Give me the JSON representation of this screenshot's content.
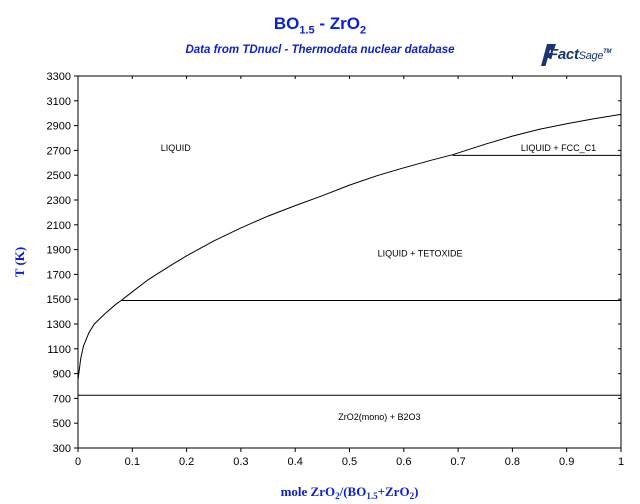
{
  "title": {
    "main": "BO",
    "sub": "1.5",
    "rest": " - ZrO",
    "sub2": "2"
  },
  "subtitle": "Data from TDnucl - Thermodata nuclear database",
  "logo": {
    "fact": "Fact",
    "sage": "Sage",
    "tm": "TM"
  },
  "chart_data": {
    "type": "line",
    "title": "BO1.5 - ZrO2",
    "xlabel": "mole ZrO2/(BO1.5+ZrO2)",
    "ylabel": "T (K)",
    "xlim": [
      0,
      1
    ],
    "ylim": [
      300,
      3300
    ],
    "xticks": [
      "0",
      "0.1",
      "0.2",
      "0.3",
      "0.4",
      "0.5",
      "0.6",
      "0.7",
      "0.8",
      "0.9",
      "1"
    ],
    "yticks": [
      "300",
      "500",
      "700",
      "900",
      "1100",
      "1300",
      "1500",
      "1700",
      "1900",
      "2100",
      "2300",
      "2500",
      "2700",
      "2900",
      "3100",
      "3300"
    ],
    "liquidus": [
      [
        0.0,
        850
      ],
      [
        0.005,
        1020
      ],
      [
        0.01,
        1120
      ],
      [
        0.02,
        1230
      ],
      [
        0.03,
        1300
      ],
      [
        0.05,
        1385
      ],
      [
        0.07,
        1460
      ],
      [
        0.08,
        1490
      ],
      [
        0.1,
        1560
      ],
      [
        0.13,
        1660
      ],
      [
        0.17,
        1770
      ],
      [
        0.2,
        1850
      ],
      [
        0.25,
        1970
      ],
      [
        0.3,
        2075
      ],
      [
        0.35,
        2170
      ],
      [
        0.4,
        2255
      ],
      [
        0.45,
        2335
      ],
      [
        0.5,
        2420
      ],
      [
        0.55,
        2495
      ],
      [
        0.6,
        2560
      ],
      [
        0.65,
        2620
      ],
      [
        0.69,
        2665
      ],
      [
        0.75,
        2750
      ],
      [
        0.8,
        2815
      ],
      [
        0.85,
        2870
      ],
      [
        0.9,
        2915
      ],
      [
        0.95,
        2955
      ],
      [
        1.0,
        2990
      ]
    ],
    "horizontal_lines": [
      {
        "T": 2660,
        "x_from": 0.69,
        "x_to": 1.0
      },
      {
        "T": 1490,
        "x_from": 0.08,
        "x_to": 1.0
      },
      {
        "T": 725,
        "x_from": 0.0,
        "x_to": 1.0
      }
    ],
    "regions": [
      {
        "label": "LIQUID",
        "x": 0.18,
        "T": 2720
      },
      {
        "label": "LIQUID + FCC_C1",
        "x": 0.885,
        "T": 2720
      },
      {
        "label": "LIQUID + TETOXIDE",
        "x": 0.63,
        "T": 1870
      },
      {
        "label": "ZrO2(mono) + B2O3",
        "x": 0.555,
        "T": 550
      }
    ]
  }
}
